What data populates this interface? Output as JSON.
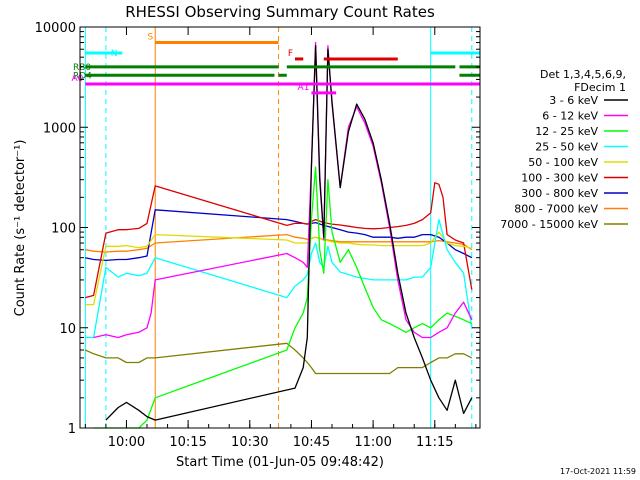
{
  "chart_data": {
    "type": "line",
    "title": "RHESSI Observing Summary Count Rates",
    "xlabel": "Start Time (01-Jun-05 09:48:42)",
    "ylabel": "Count Rate (s⁻¹ detector⁻¹)",
    "xlim": [
      "09:48:42",
      "11:26:00"
    ],
    "ylim": [
      1,
      10000
    ],
    "y_scale": "log",
    "x_ticks": [
      "10:00",
      "10:15",
      "10:30",
      "10:45",
      "11:00",
      "11:15"
    ],
    "y_ticks": [
      "1",
      "10",
      "100",
      "1000",
      "10000"
    ],
    "legend": {
      "position": "right",
      "header": [
        "Det 1,3,4,5,6,9,",
        "FDecim 1"
      ]
    },
    "series": [
      {
        "name": "3 - 6 keV",
        "color": "#000000",
        "x": [
          "09:55",
          "09:58",
          "10:00",
          "10:03",
          "10:05",
          "10:07",
          "10:41",
          "10:43",
          "10:44",
          "10:45",
          "10:46",
          "10:47",
          "10:48",
          "10:49",
          "10:50",
          "10:52",
          "10:54",
          "10:56",
          "10:58",
          "11:00",
          "11:02",
          "11:04",
          "11:06",
          "11:08",
          "11:10",
          "11:12",
          "11:14",
          "11:16",
          "11:18",
          "11:20",
          "11:22",
          "11:24"
        ],
        "y": [
          1.2,
          1.6,
          1.8,
          1.5,
          1.3,
          1.2,
          2.5,
          4,
          8,
          400,
          6500,
          300,
          80,
          6000,
          1800,
          250,
          900,
          1700,
          1200,
          700,
          300,
          110,
          35,
          14,
          8,
          5,
          3,
          2,
          1.5,
          3,
          1.4,
          2
        ]
      },
      {
        "name": "6 - 12 keV",
        "color": "#ff00ff",
        "x": [
          "09:52",
          "09:55",
          "09:58",
          "10:00",
          "10:03",
          "10:05",
          "10:06",
          "10:07",
          "10:39",
          "10:41",
          "10:43",
          "10:44",
          "10:45",
          "10:46",
          "10:47",
          "10:48",
          "10:49",
          "10:50",
          "10:52",
          "10:54",
          "10:56",
          "10:58",
          "11:00",
          "11:02",
          "11:04",
          "11:06",
          "11:08",
          "11:10",
          "11:12",
          "11:14",
          "11:16",
          "11:18",
          "11:20",
          "11:22",
          "11:24"
        ],
        "y": [
          8,
          8.5,
          8,
          8.5,
          9,
          10,
          14,
          30,
          55,
          50,
          45,
          40,
          400,
          7000,
          350,
          75,
          6500,
          1700,
          250,
          1000,
          1600,
          1100,
          650,
          280,
          100,
          30,
          12,
          9,
          8,
          8,
          9,
          10,
          14,
          18,
          12
        ]
      },
      {
        "name": "12 - 25 keV",
        "color": "#00ff00",
        "x": [
          "09:52",
          "09:55",
          "09:58",
          "10:00",
          "10:03",
          "10:05",
          "10:07",
          "10:39",
          "10:41",
          "10:43",
          "10:44",
          "10:45",
          "10:46",
          "10:47",
          "10:48",
          "10:49",
          "10:50",
          "10:52",
          "10:54",
          "10:56",
          "10:58",
          "11:00",
          "11:02",
          "11:04",
          "11:06",
          "11:08",
          "11:10",
          "11:12",
          "11:14",
          "11:16",
          "11:18",
          "11:20",
          "11:22",
          "11:24"
        ],
        "y": [
          1,
          1,
          1,
          1,
          1,
          1.2,
          2,
          6,
          10,
          14,
          20,
          120,
          400,
          60,
          35,
          300,
          90,
          45,
          60,
          40,
          25,
          16,
          12,
          11,
          10,
          9,
          10,
          11,
          10,
          12,
          14,
          13,
          12,
          11
        ]
      },
      {
        "name": "25 - 50 keV",
        "color": "#00ffff",
        "x": [
          "09:50",
          "09:52",
          "09:55",
          "09:58",
          "10:00",
          "10:03",
          "10:05",
          "10:07",
          "10:39",
          "10:41",
          "10:43",
          "10:44",
          "10:45",
          "10:46",
          "10:47",
          "10:48",
          "10:49",
          "10:50",
          "10:52",
          "10:54",
          "10:56",
          "10:58",
          "11:00",
          "11:02",
          "11:04",
          "11:06",
          "11:08",
          "11:10",
          "11:12",
          "11:14",
          "11:16",
          "11:18",
          "11:20",
          "11:22",
          "11:24"
        ],
        "y": [
          8,
          8,
          40,
          32,
          35,
          33,
          35,
          50,
          20,
          26,
          30,
          34,
          55,
          70,
          45,
          40,
          65,
          45,
          36,
          34,
          32,
          31,
          30,
          30,
          30,
          30,
          30,
          32,
          32,
          40,
          120,
          60,
          45,
          35,
          10
        ]
      },
      {
        "name": "50 - 100 keV",
        "color": "#dddd00",
        "x": [
          "09:50",
          "09:52",
          "09:55",
          "09:58",
          "10:00",
          "10:03",
          "10:05",
          "10:07",
          "10:39",
          "10:41",
          "10:43",
          "10:44",
          "10:45",
          "10:46",
          "10:48",
          "10:50",
          "10:52",
          "10:54",
          "10:56",
          "10:58",
          "11:00",
          "11:02",
          "11:04",
          "11:06",
          "11:08",
          "11:10",
          "11:12",
          "11:14",
          "11:16",
          "11:18",
          "11:20",
          "11:22",
          "11:24"
        ],
        "y": [
          17,
          17,
          65,
          65,
          66,
          63,
          65,
          85,
          75,
          70,
          70,
          70,
          78,
          80,
          75,
          72,
          70,
          70,
          68,
          67,
          67,
          66,
          66,
          66,
          66,
          66,
          66,
          70,
          90,
          70,
          66,
          65,
          62
        ]
      },
      {
        "name": "100 - 300 keV",
        "color": "#dd0000",
        "x": [
          "09:50",
          "09:52",
          "09:55",
          "09:58",
          "10:00",
          "10:03",
          "10:05",
          "10:07",
          "10:39",
          "10:41",
          "10:43",
          "10:44",
          "10:45",
          "10:46",
          "10:48",
          "10:50",
          "10:52",
          "10:54",
          "10:56",
          "10:58",
          "11:00",
          "11:02",
          "11:04",
          "11:06",
          "11:08",
          "11:10",
          "11:12",
          "11:14",
          "11:15",
          "11:16",
          "11:17",
          "11:18",
          "11:20",
          "11:22",
          "11:24"
        ],
        "y": [
          20,
          21,
          88,
          95,
          95,
          98,
          110,
          260,
          105,
          110,
          110,
          108,
          115,
          120,
          112,
          108,
          106,
          103,
          100,
          98,
          97,
          98,
          100,
          102,
          105,
          110,
          120,
          140,
          280,
          270,
          200,
          85,
          75,
          70,
          24
        ]
      },
      {
        "name": "300 - 800 keV",
        "color": "#0000cc",
        "x": [
          "09:50",
          "09:52",
          "09:55",
          "09:58",
          "10:00",
          "10:03",
          "10:05",
          "10:07",
          "10:39",
          "10:41",
          "10:43",
          "10:44",
          "10:45",
          "10:46",
          "10:48",
          "10:50",
          "10:52",
          "10:54",
          "10:56",
          "10:58",
          "11:00",
          "11:02",
          "11:04",
          "11:06",
          "11:08",
          "11:10",
          "11:12",
          "11:14",
          "11:16",
          "11:18",
          "11:20",
          "11:22",
          "11:24"
        ],
        "y": [
          50,
          48,
          47,
          48,
          48,
          50,
          52,
          150,
          120,
          115,
          110,
          108,
          110,
          112,
          105,
          100,
          95,
          90,
          88,
          85,
          80,
          80,
          80,
          78,
          80,
          80,
          85,
          85,
          80,
          70,
          60,
          55,
          50
        ]
      },
      {
        "name": "800 - 7000 keV",
        "color": "#ff8000",
        "x": [
          "09:50",
          "09:52",
          "09:55",
          "09:58",
          "10:00",
          "10:03",
          "10:05",
          "10:07",
          "10:39",
          "10:41",
          "10:43",
          "10:44",
          "10:45",
          "10:46",
          "10:48",
          "10:50",
          "10:52",
          "10:54",
          "10:56",
          "10:58",
          "11:00",
          "11:02",
          "11:04",
          "11:06",
          "11:08",
          "11:10",
          "11:12",
          "11:14",
          "11:16",
          "11:18",
          "11:20",
          "11:22",
          "11:24"
        ],
        "y": [
          60,
          58,
          57,
          58,
          58,
          60,
          62,
          70,
          85,
          80,
          78,
          76,
          78,
          80,
          76,
          74,
          72,
          72,
          72,
          72,
          72,
          72,
          72,
          72,
          72,
          72,
          72,
          72,
          74,
          72,
          70,
          68,
          60
        ]
      },
      {
        "name": "7000 - 15000 keV",
        "color": "#808000",
        "x": [
          "09:50",
          "09:52",
          "09:55",
          "09:58",
          "10:00",
          "10:03",
          "10:05",
          "10:07",
          "10:39",
          "10:41",
          "10:43",
          "10:44",
          "10:45",
          "10:46",
          "10:48",
          "10:50",
          "10:52",
          "10:54",
          "10:56",
          "10:58",
          "11:00",
          "11:02",
          "11:04",
          "11:06",
          "11:08",
          "11:10",
          "11:12",
          "11:14",
          "11:16",
          "11:18",
          "11:20",
          "11:22",
          "11:24"
        ],
        "y": [
          6,
          5.5,
          5,
          5,
          4.5,
          4.5,
          5,
          5,
          7,
          6,
          5,
          4.5,
          4,
          3.5,
          3.5,
          3.5,
          3.5,
          3.5,
          3.5,
          3.5,
          3.5,
          3.5,
          3.5,
          4,
          4,
          4,
          4,
          4.5,
          5,
          5,
          5.5,
          5.5,
          5
        ]
      }
    ],
    "vertical_markers": [
      {
        "time": "09:50",
        "color": "#00ffff",
        "style": "solid"
      },
      {
        "time": "09:55",
        "color": "#00ffff",
        "style": "dashed"
      },
      {
        "time": "10:07",
        "color": "#ff8000",
        "style": "solid"
      },
      {
        "time": "10:37",
        "color": "#ff8000",
        "style": "dashed"
      },
      {
        "time": "11:14",
        "color": "#00ffff",
        "style": "solid"
      },
      {
        "time": "11:24",
        "color": "#00ffff",
        "style": "dashed"
      }
    ],
    "flag_bars": [
      {
        "label": "N",
        "color": "#00ffff",
        "y_value": 5500,
        "segments": [
          [
            "09:50",
            "09:59"
          ],
          [
            "11:14",
            "11:26"
          ]
        ]
      },
      {
        "label": "S",
        "color": "#ff8000",
        "y_value": 7000,
        "segments": [
          [
            "10:07",
            "10:37"
          ]
        ]
      },
      {
        "label": "F",
        "color": "#dd0000",
        "y_value": 4800,
        "segments": [
          [
            "10:41",
            "10:43"
          ],
          [
            "10:48",
            "11:06"
          ]
        ]
      },
      {
        "label": "RB0",
        "color": "#008000",
        "y_value": 4000,
        "segments": [
          [
            "09:50",
            "10:37"
          ],
          [
            "10:39",
            "11:20"
          ],
          [
            "11:21",
            "11:26"
          ]
        ]
      },
      {
        "label": "RD4",
        "color": "#008000",
        "y_value": 3300,
        "segments": [
          [
            "09:50",
            "10:36"
          ],
          [
            "10:37",
            "10:39"
          ],
          [
            "11:21",
            "11:26"
          ]
        ]
      },
      {
        "label": "A0",
        "color": "#ff00ff",
        "y_value": 2700,
        "segments": [
          [
            "09:50",
            "11:26"
          ]
        ]
      },
      {
        "label": "A1",
        "color": "#ff00ff",
        "y_value": 2200,
        "segments": [
          [
            "10:45",
            "10:51"
          ]
        ]
      }
    ],
    "timestamp": "17-Oct-2021 11:59"
  }
}
